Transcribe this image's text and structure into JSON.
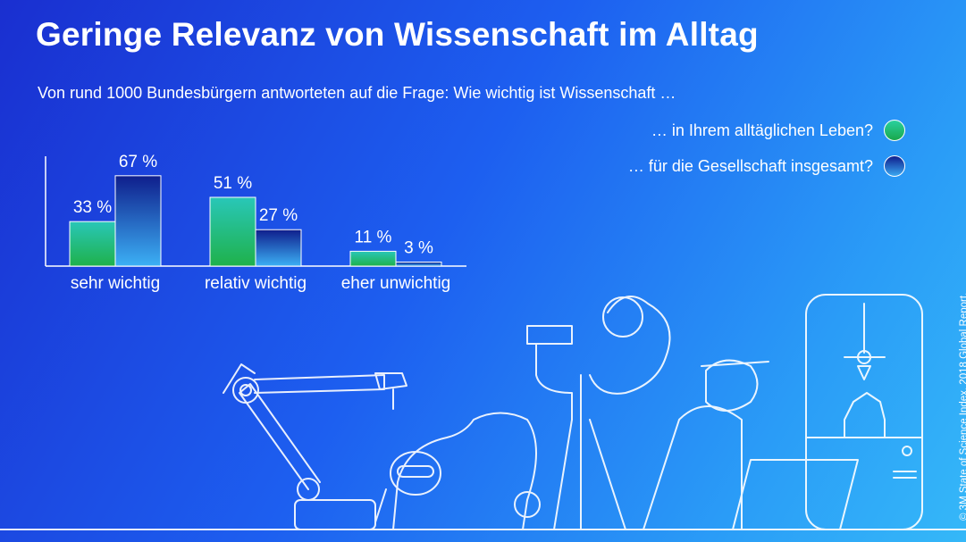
{
  "title": "Geringe Relevanz von Wissenschaft im Alltag",
  "subtitle": "Von rund 1000 Bundesbürgern antworteten auf die Frage: Wie wichtig ist Wissenschaft …",
  "credit": "© 3M State of Science Index, 2018 Global Report.",
  "chart_data": {
    "type": "bar",
    "categories": [
      "sehr wichtig",
      "relativ wichtig",
      "eher unwichtig"
    ],
    "series": [
      {
        "name": "… in Ihrem alltäglichen Leben?",
        "values": [
          33,
          51,
          11
        ],
        "value_labels": [
          "33 %",
          "51 %",
          "11 %"
        ],
        "color_top": "#29c7b8",
        "color_bottom": "#1fb14a"
      },
      {
        "name": "… für die Gesellschaft insgesamt?",
        "values": [
          67,
          27,
          3
        ],
        "value_labels": [
          "67 %",
          "27 %",
          "3 %"
        ],
        "color_top": "#0f1e8c",
        "color_bottom": "#3cb0f5"
      }
    ],
    "ylim": [
      0,
      70
    ],
    "unit": "%",
    "grid": false,
    "legend_position": "top-right"
  },
  "colors": {
    "background_start": "#1a2fd0",
    "background_end": "#35b8f8",
    "text": "#ffffff",
    "green": "#1fb14a",
    "navy": "#0f1e8c"
  }
}
